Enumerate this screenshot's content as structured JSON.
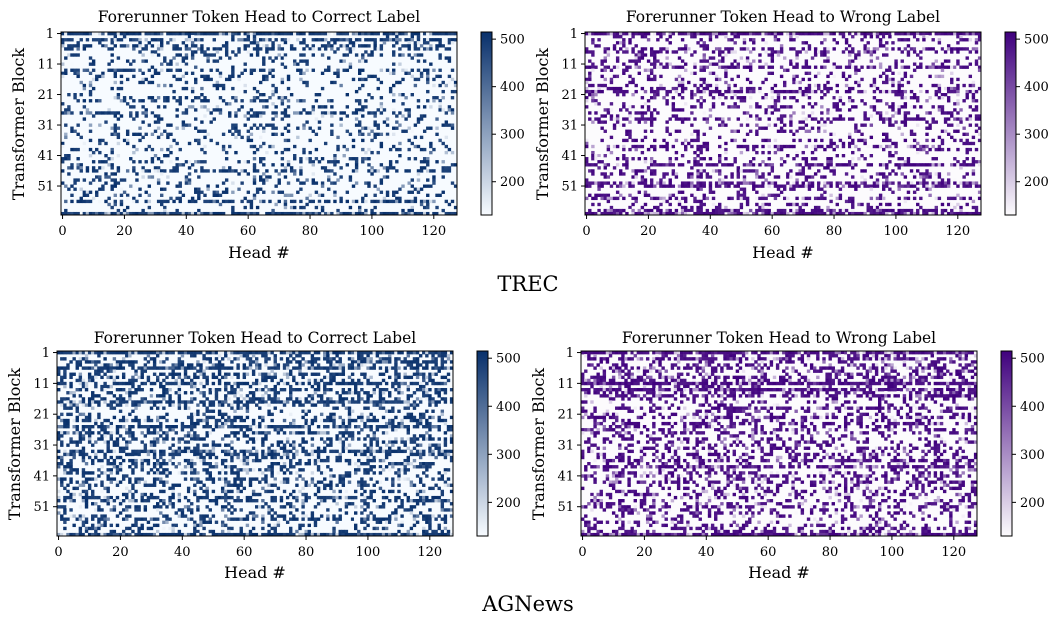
{
  "figure": {
    "groups": [
      {
        "dataset_label": "TREC",
        "dataset_key": "trec"
      },
      {
        "dataset_label": "AGNews",
        "dataset_key": "agnews"
      }
    ]
  },
  "chart_data": [
    {
      "id": "trec-correct",
      "type": "heatmap",
      "title": "Forerunner Token Head to Correct Label",
      "xlabel": "Head #",
      "ylabel": "Transformer Block",
      "x_ticks": [
        0,
        20,
        40,
        60,
        80,
        100,
        120
      ],
      "y_ticks": [
        "1",
        "11",
        "21",
        "31",
        "41",
        "51"
      ],
      "xlim": [
        0,
        127
      ],
      "ylim": [
        1,
        60
      ],
      "colormap": "Blues",
      "colorbar_ticks": [
        200,
        300,
        400,
        500
      ],
      "colorbar_range": [
        130,
        515
      ],
      "low_color": "#f7fbff",
      "high_color": "#08306b",
      "grid": "off",
      "density": 0.2,
      "seed": 11
    },
    {
      "id": "trec-wrong",
      "type": "heatmap",
      "title": "Forerunner Token Head to Wrong Label",
      "xlabel": "Head #",
      "ylabel": "Transformer Block",
      "x_ticks": [
        0,
        20,
        40,
        60,
        80,
        100,
        120
      ],
      "y_ticks": [
        "1",
        "11",
        "21",
        "31",
        "41",
        "51"
      ],
      "xlim": [
        0,
        127
      ],
      "ylim": [
        1,
        60
      ],
      "colormap": "Purples",
      "colorbar_ticks": [
        200,
        300,
        400,
        500
      ],
      "colorbar_range": [
        130,
        515
      ],
      "low_color": "#fcfbfd",
      "high_color": "#3f007d",
      "grid": "off",
      "density": 0.22,
      "seed": 23
    },
    {
      "id": "agnews-correct",
      "type": "heatmap",
      "title": "Forerunner Token Head to Correct Label",
      "xlabel": "Head #",
      "ylabel": "Transformer Block",
      "x_ticks": [
        0,
        20,
        40,
        60,
        80,
        100,
        120
      ],
      "y_ticks": [
        "1",
        "11",
        "21",
        "31",
        "41",
        "51"
      ],
      "xlim": [
        0,
        127
      ],
      "ylim": [
        1,
        60
      ],
      "colormap": "Blues",
      "colorbar_ticks": [
        200,
        300,
        400,
        500
      ],
      "colorbar_range": [
        130,
        515
      ],
      "low_color": "#f7fbff",
      "high_color": "#08306b",
      "grid": "off",
      "density": 0.38,
      "seed": 37
    },
    {
      "id": "agnews-wrong",
      "type": "heatmap",
      "title": "Forerunner Token Head to Wrong Label",
      "xlabel": "Head #",
      "ylabel": "Transformer Block",
      "x_ticks": [
        0,
        20,
        40,
        60,
        80,
        100,
        120
      ],
      "y_ticks": [
        "1",
        "11",
        "21",
        "31",
        "41",
        "51"
      ],
      "xlim": [
        0,
        127
      ],
      "ylim": [
        1,
        60
      ],
      "colormap": "Purples",
      "colorbar_ticks": [
        200,
        300,
        400,
        500
      ],
      "colorbar_range": [
        130,
        515
      ],
      "low_color": "#fcfbfd",
      "high_color": "#3f007d",
      "grid": "off",
      "density": 0.36,
      "seed": 53
    }
  ]
}
